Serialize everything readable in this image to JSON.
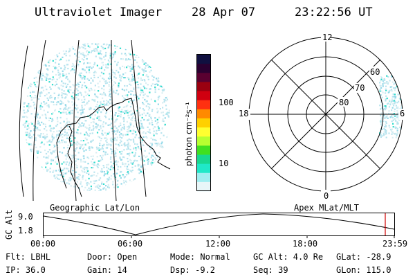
{
  "header": {
    "instrument": "Ultraviolet Imager",
    "date": "28 Apr 07",
    "time": "23:22:56 UT"
  },
  "colorbar": {
    "label": "photon cm⁻²s⁻¹",
    "tick_labels": [
      "100",
      "10"
    ],
    "colors": [
      "#101040",
      "#2a0030",
      "#5a0030",
      "#9a0010",
      "#d00010",
      "#ff3010",
      "#ff8a00",
      "#ffd000",
      "#ffff30",
      "#b8ff30",
      "#40e020",
      "#18d890",
      "#20e8c8",
      "#a0eef0",
      "#e8f6f8"
    ]
  },
  "geo_panel": {
    "label": "Geographic Lat/Lon",
    "dot_colors": [
      "#b8e4ee",
      "#d8eef2",
      "#30dccc",
      "#90d8e8"
    ]
  },
  "polar_panel": {
    "label": "Apex MLat/MLT",
    "mlt_labels": {
      "top": "12",
      "left": "18",
      "right": "6",
      "bottom": "0"
    },
    "lat_labels": [
      "60",
      "70",
      "80"
    ]
  },
  "altitude_plot": {
    "ylabel": "GC Alt",
    "y_ticks": [
      "9.0",
      "1.8"
    ],
    "x_ticks": [
      "00:00",
      "06:00",
      "12:00",
      "18:00",
      "23:59"
    ],
    "current_marker_color": "#d00000"
  },
  "info": {
    "flt": "Flt: LBHL",
    "ip": "IP: 36.0",
    "door": "Door: Open",
    "gain": "Gain: 14",
    "mode": "Mode: Normal",
    "dsp": "Dsp:   -9.2",
    "gcalt": "GC Alt: 4.0 Re",
    "seq": "Seq: 39",
    "glat": "GLat: -28.9",
    "glon": "GLon: 115.0"
  }
}
